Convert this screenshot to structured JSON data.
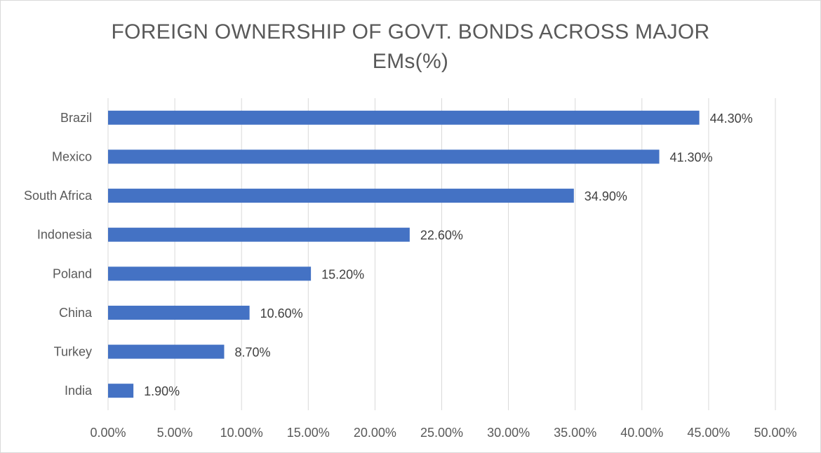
{
  "chart_data": {
    "type": "bar",
    "orientation": "horizontal",
    "title_line1": "FOREIGN OWNERSHIP OF GOVT. BONDS ACROSS MAJOR",
    "title_line2": "EMs(%)",
    "categories": [
      "Brazil",
      "Mexico",
      "South Africa",
      "Indonesia",
      "Poland",
      "China",
      "Turkey",
      "India"
    ],
    "values": [
      44.3,
      41.3,
      34.9,
      22.6,
      15.2,
      10.6,
      8.7,
      1.9
    ],
    "data_labels": [
      "44.30%",
      "41.30%",
      "34.90%",
      "22.60%",
      "15.20%",
      "10.60%",
      "8.70%",
      "1.90%"
    ],
    "xlim": [
      0,
      50
    ],
    "x_ticks": [
      0,
      5,
      10,
      15,
      20,
      25,
      30,
      35,
      40,
      45,
      50
    ],
    "x_tick_labels": [
      "0.00%",
      "5.00%",
      "10.00%",
      "15.00%",
      "20.00%",
      "25.00%",
      "30.00%",
      "35.00%",
      "40.00%",
      "45.00%",
      "50.00%"
    ],
    "grid": "vertical",
    "legend": "none",
    "bar_color": "#4472c4",
    "grid_color": "#d9d9d9"
  }
}
